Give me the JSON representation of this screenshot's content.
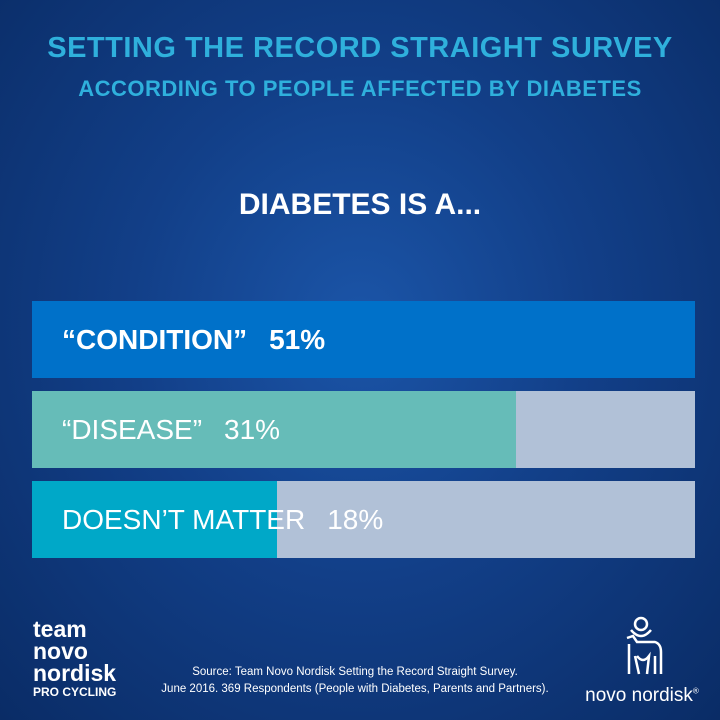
{
  "header": {
    "title": "SETTING THE RECORD STRAIGHT SURVEY",
    "subtitle": "ACCORDING TO PEOPLE AFFECTED BY DIABETES"
  },
  "chart_data": {
    "type": "bar",
    "orientation": "horizontal",
    "title": "DIABETES IS A...",
    "categories": [
      "“CONDITION”",
      "“DISEASE”",
      "DOESN’T MATTER"
    ],
    "values": [
      51,
      31,
      18
    ],
    "value_labels": [
      "51%",
      "31%",
      "18%"
    ],
    "bar_fill": [
      1.0,
      0.73,
      0.37
    ],
    "colors": [
      "#0071c9",
      "#66bcb8",
      "#00a8c8"
    ],
    "track_color": "#b1c1d7"
  },
  "footer": {
    "team_lines": [
      "team",
      "novo",
      "nordisk"
    ],
    "team_sub": "PRO CYCLING",
    "source_line1": "Source: Team Novo Nordisk Setting the Record Straight Survey.",
    "source_line2": "June 2016. 369 Respondents (People with Diabetes, Parents and Partners).",
    "logo_text": "novo nordisk",
    "logo_mark": "®"
  }
}
